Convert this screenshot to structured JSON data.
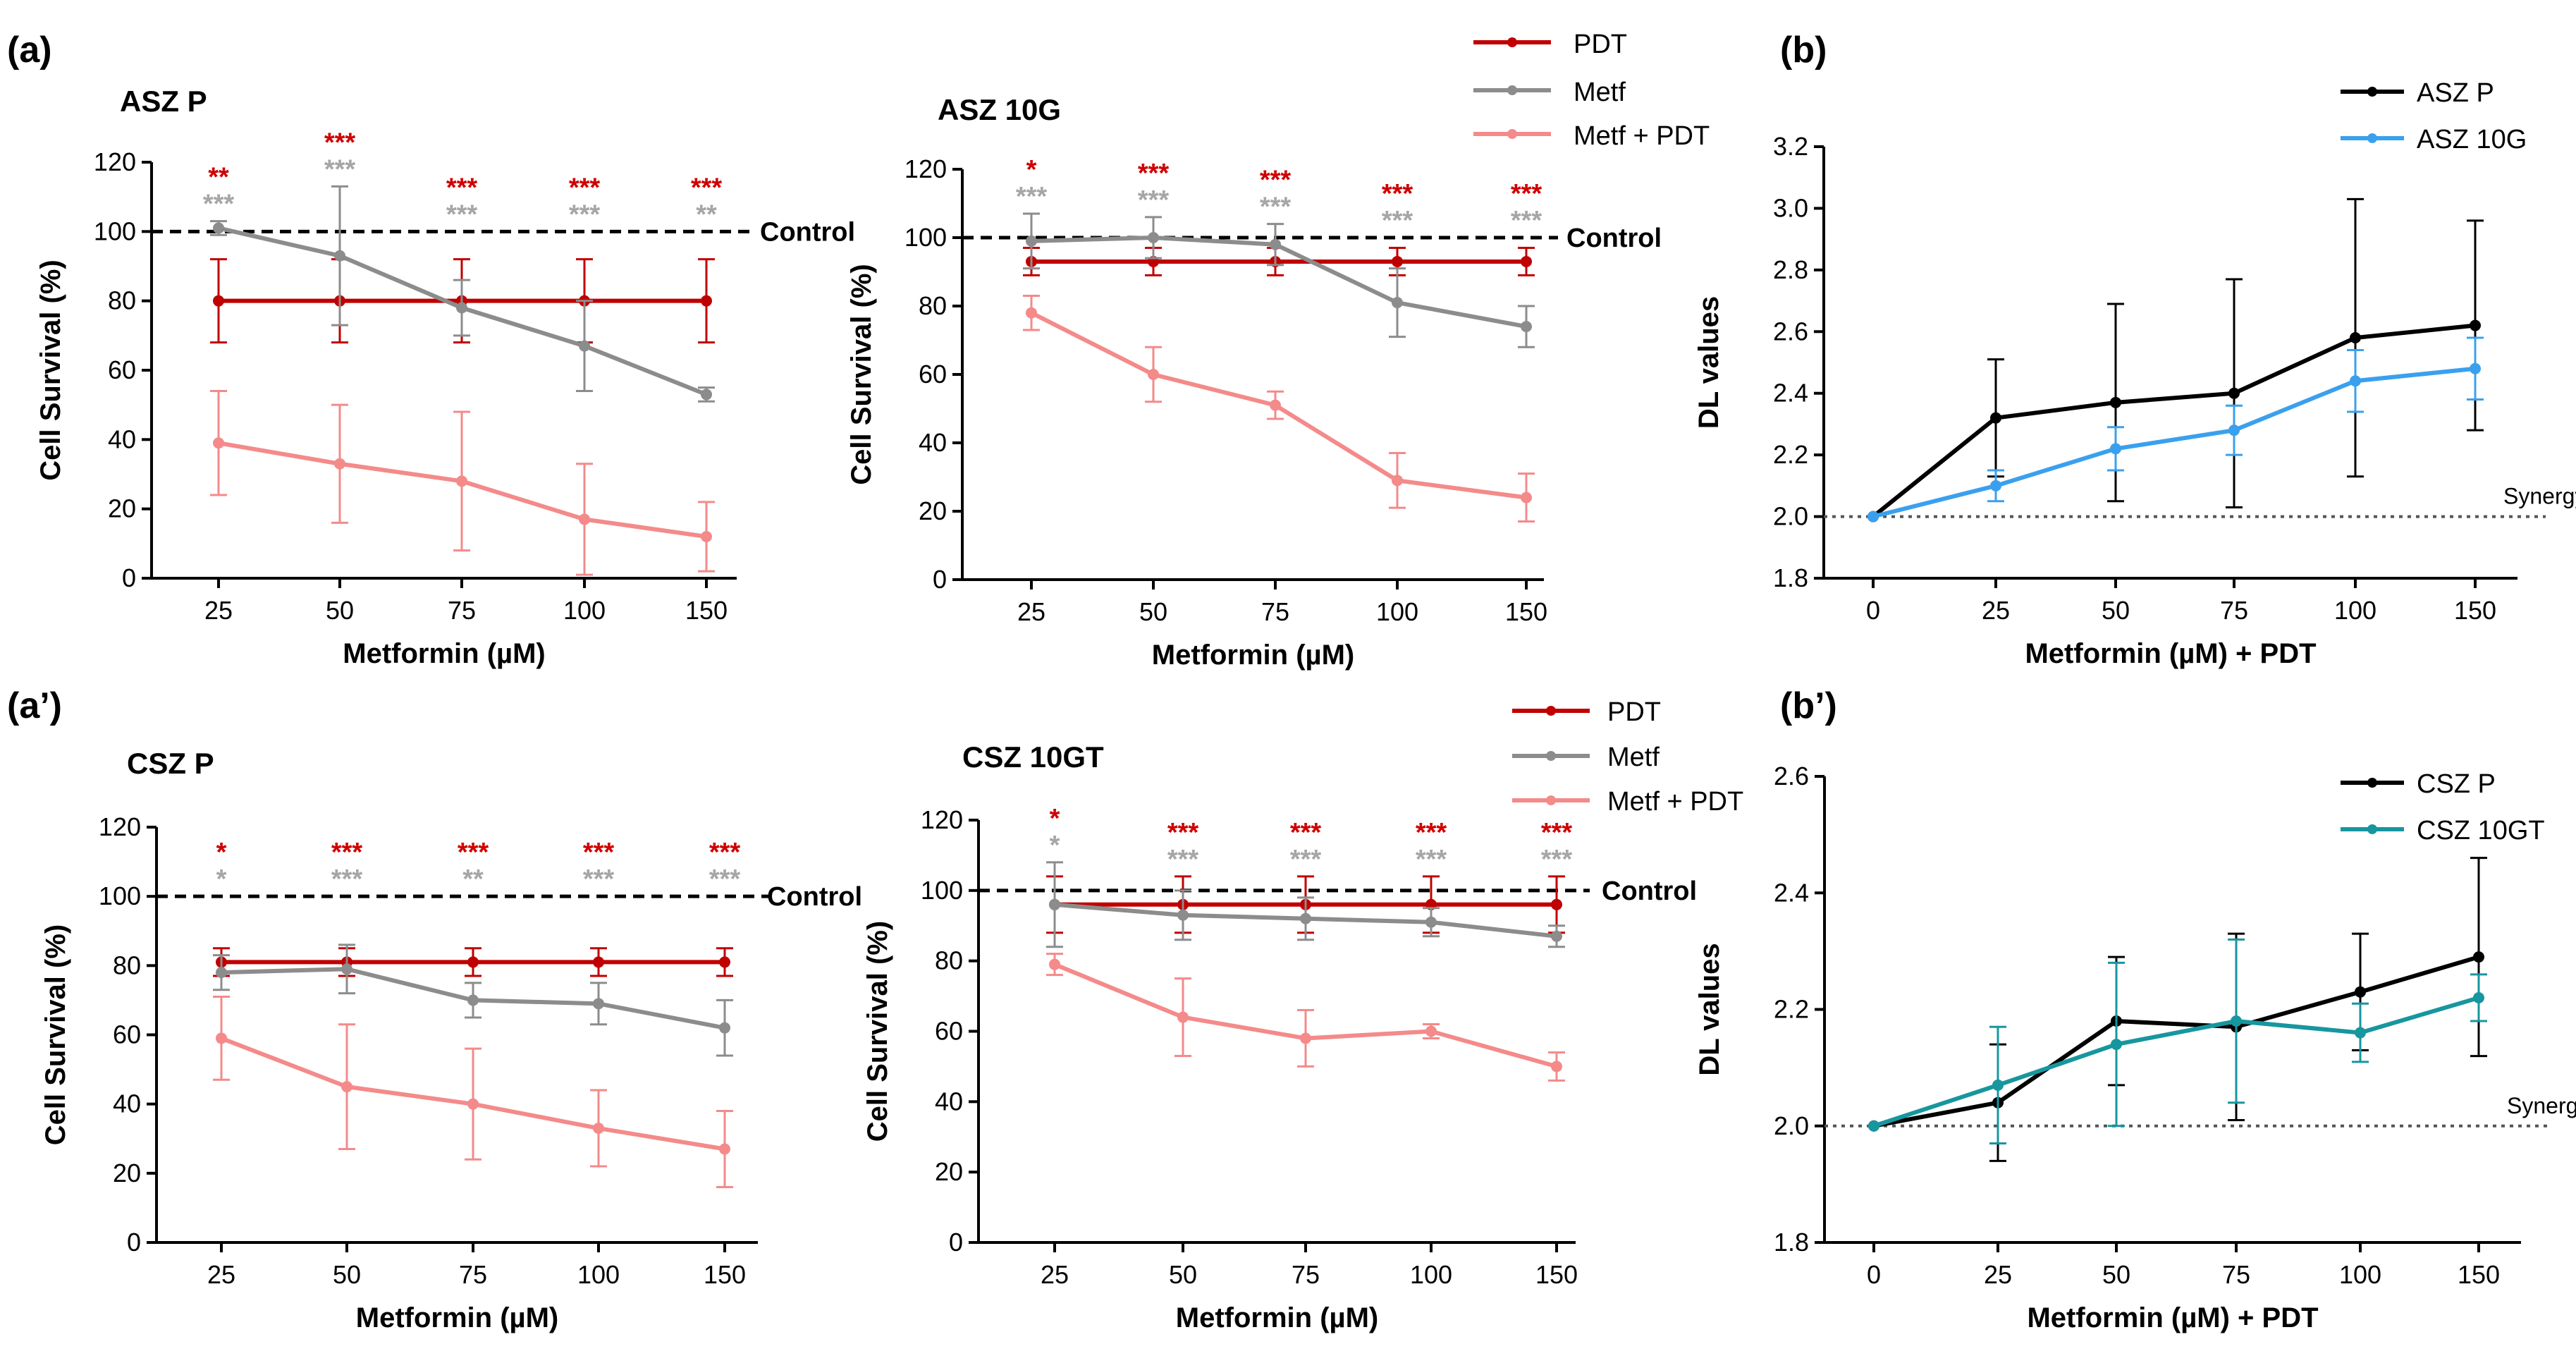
{
  "figure": {
    "panel_labels": [
      "(a)",
      "(b)",
      "(a’)",
      "(b’)"
    ],
    "legend_row1": [
      "PDT",
      "Metf",
      "Metf + PDT"
    ],
    "legend_row2": [
      "PDT",
      "Metf",
      "Metf + PDT"
    ],
    "control_label": "Control",
    "synergy_label": "Synergy"
  },
  "colors": {
    "pdt": "#c00000",
    "metf": "#8c8c8c",
    "combo": "#f48a8a",
    "star_red": "#d00000",
    "star_gray": "#a6a6a6",
    "asz_p": "#000000",
    "asz_10g": "#3aa0ee",
    "csz_p": "#000000",
    "csz_10gt": "#17969f",
    "axis": "#000000"
  },
  "chart_data": [
    {
      "id": "asz_p",
      "type": "line",
      "title": "ASZ P",
      "xlabel": "Metformin (µM)",
      "ylabel": "Cell Survival (%)",
      "categories": [
        "25",
        "50",
        "75",
        "100",
        "150"
      ],
      "ylim": [
        0,
        120
      ],
      "yticks": [
        "0",
        "20",
        "40",
        "60",
        "80",
        "100",
        "120"
      ],
      "control_value": 100,
      "series": [
        {
          "name": "PDT",
          "values": [
            80,
            80,
            80,
            80,
            80
          ],
          "errors": [
            12,
            12,
            12,
            12,
            12
          ]
        },
        {
          "name": "Metf",
          "values": [
            101,
            93,
            78,
            67,
            53
          ],
          "errors": [
            2,
            20,
            8,
            13,
            2
          ]
        },
        {
          "name": "Metf + PDT",
          "values": [
            39,
            33,
            28,
            17,
            12
          ],
          "errors": [
            15,
            17,
            20,
            16,
            10
          ]
        }
      ],
      "stars_red": [
        "**",
        "***",
        "***",
        "***",
        "***"
      ],
      "stars_gray": [
        "***",
        "***",
        "***",
        "***",
        "**"
      ]
    },
    {
      "id": "asz_10g",
      "type": "line",
      "title": "ASZ 10G",
      "xlabel": "Metformin (µM)",
      "ylabel": "Cell Survival (%)",
      "categories": [
        "25",
        "50",
        "75",
        "100",
        "150"
      ],
      "ylim": [
        0,
        120
      ],
      "yticks": [
        "0",
        "20",
        "40",
        "60",
        "80",
        "100",
        "120"
      ],
      "control_value": 100,
      "series": [
        {
          "name": "PDT",
          "values": [
            93,
            93,
            93,
            93,
            93
          ],
          "errors": [
            4,
            4,
            4,
            4,
            4
          ]
        },
        {
          "name": "Metf",
          "values": [
            99,
            100,
            98,
            81,
            74
          ],
          "errors": [
            8,
            6,
            6,
            10,
            6
          ]
        },
        {
          "name": "Metf + PDT",
          "values": [
            78,
            60,
            51,
            29,
            24
          ],
          "errors": [
            5,
            8,
            4,
            8,
            7
          ]
        }
      ],
      "stars_red": [
        "*",
        "***",
        "***",
        "***",
        "***"
      ],
      "stars_gray": [
        "***",
        "***",
        "***",
        "***",
        "***"
      ]
    },
    {
      "id": "asz_dl",
      "type": "line",
      "title": "",
      "xlabel": "Metformin (µM) + PDT",
      "ylabel": "DL values",
      "categories": [
        "0",
        "25",
        "50",
        "75",
        "100",
        "150"
      ],
      "ylim": [
        1.8,
        3.2
      ],
      "yticks": [
        "1.8",
        "2.0",
        "2.2",
        "2.4",
        "2.6",
        "2.8",
        "3.0",
        "3.2"
      ],
      "synergy_value": 2.0,
      "series": [
        {
          "name": "ASZ P",
          "values": [
            2.0,
            2.32,
            2.37,
            2.4,
            2.58,
            2.62
          ],
          "errors": [
            0,
            0.19,
            0.32,
            0.37,
            0.45,
            0.34
          ]
        },
        {
          "name": "ASZ 10G",
          "values": [
            2.0,
            2.1,
            2.22,
            2.28,
            2.44,
            2.48
          ],
          "errors": [
            0,
            0.05,
            0.07,
            0.08,
            0.1,
            0.1
          ]
        }
      ]
    },
    {
      "id": "csz_p",
      "type": "line",
      "title": "CSZ P",
      "xlabel": "Metformin (µM)",
      "ylabel": "Cell Survival (%)",
      "categories": [
        "25",
        "50",
        "75",
        "100",
        "150"
      ],
      "ylim": [
        0,
        120
      ],
      "yticks": [
        "0",
        "20",
        "40",
        "60",
        "80",
        "100",
        "120"
      ],
      "control_value": 100,
      "series": [
        {
          "name": "PDT",
          "values": [
            81,
            81,
            81,
            81,
            81
          ],
          "errors": [
            4,
            4,
            4,
            4,
            4
          ]
        },
        {
          "name": "Metf",
          "values": [
            78,
            79,
            70,
            69,
            62
          ],
          "errors": [
            5,
            7,
            5,
            6,
            8
          ]
        },
        {
          "name": "Metf + PDT",
          "values": [
            59,
            45,
            40,
            33,
            27
          ],
          "errors": [
            12,
            18,
            16,
            11,
            11
          ]
        }
      ],
      "stars_red": [
        "*",
        "***",
        "***",
        "***",
        "***"
      ],
      "stars_gray": [
        "*",
        "***",
        "**",
        "***",
        "***"
      ]
    },
    {
      "id": "csz_10gt",
      "type": "line",
      "title": "CSZ 10GT",
      "xlabel": "Metformin (µM)",
      "ylabel": "Cell Survival (%)",
      "categories": [
        "25",
        "50",
        "75",
        "100",
        "150"
      ],
      "ylim": [
        0,
        120
      ],
      "yticks": [
        "0",
        "20",
        "40",
        "60",
        "80",
        "100",
        "120"
      ],
      "control_value": 100,
      "series": [
        {
          "name": "PDT",
          "values": [
            96,
            96,
            96,
            96,
            96
          ],
          "errors": [
            8,
            8,
            8,
            8,
            8
          ]
        },
        {
          "name": "Metf",
          "values": [
            96,
            93,
            92,
            91,
            87
          ],
          "errors": [
            12,
            7,
            6,
            4,
            3
          ]
        },
        {
          "name": "Metf + PDT",
          "values": [
            79,
            64,
            58,
            60,
            50
          ],
          "errors": [
            3,
            11,
            8,
            2,
            4
          ]
        }
      ],
      "stars_red": [
        "*",
        "***",
        "***",
        "***",
        "***"
      ],
      "stars_gray": [
        "*",
        "***",
        "***",
        "***",
        "***"
      ]
    },
    {
      "id": "csz_dl",
      "type": "line",
      "title": "",
      "xlabel": "Metformin (µM) + PDT",
      "ylabel": "DL values",
      "categories": [
        "0",
        "25",
        "50",
        "75",
        "100",
        "150"
      ],
      "ylim": [
        1.8,
        2.6
      ],
      "yticks": [
        "1.8",
        "2.0",
        "2.2",
        "2.4",
        "2.6"
      ],
      "synergy_value": 2.0,
      "series": [
        {
          "name": "CSZ P",
          "values": [
            2.0,
            2.04,
            2.18,
            2.17,
            2.23,
            2.29
          ],
          "errors": [
            0,
            0.1,
            0.11,
            0.16,
            0.1,
            0.17
          ]
        },
        {
          "name": "CSZ 10GT",
          "values": [
            2.0,
            2.07,
            2.14,
            2.18,
            2.16,
            2.22
          ],
          "errors": [
            0,
            0.1,
            0.14,
            0.14,
            0.05,
            0.04
          ]
        }
      ]
    }
  ]
}
